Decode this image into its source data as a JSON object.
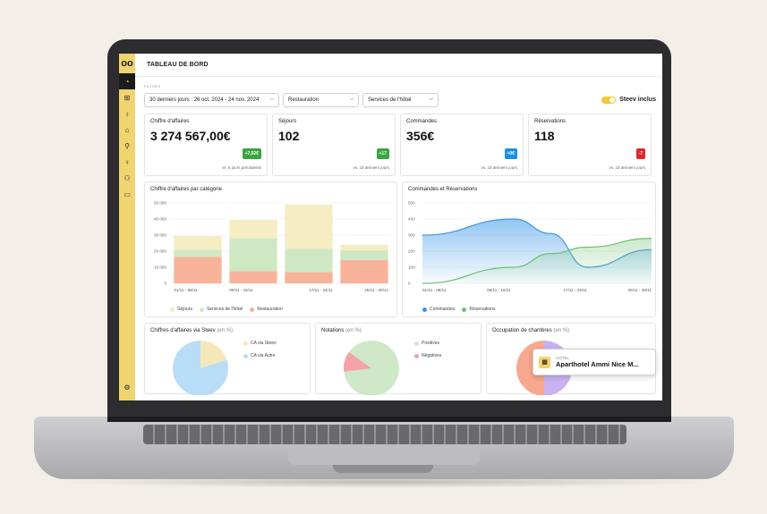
{
  "app": {
    "title": "TABLEAU DE BORD",
    "logo": "oo",
    "accent": "#f0d470"
  },
  "sidebar": {
    "items": [
      {
        "icon": "dashboard-icon",
        "glyph": "◔",
        "active": true
      },
      {
        "icon": "bag-icon",
        "glyph": "⊞",
        "active": false
      },
      {
        "icon": "cup-icon",
        "glyph": "♁",
        "active": false
      },
      {
        "icon": "cloche-icon",
        "glyph": "⌂",
        "active": false
      },
      {
        "icon": "bottle-icon",
        "glyph": "⚲",
        "active": false
      },
      {
        "icon": "lightbulb-icon",
        "glyph": "♀",
        "active": false
      },
      {
        "icon": "users-icon",
        "glyph": "⚇",
        "active": false
      },
      {
        "icon": "chat-icon",
        "glyph": "▭",
        "active": false
      }
    ],
    "settings_glyph": "⚙"
  },
  "filters": {
    "label": "FILTRES",
    "period": "30 derniers jours : 26 oct. 2024 - 24 nov. 2024",
    "category": "Restauration",
    "services": "Services de l'hôtel",
    "toggle_label": "Steev inclus",
    "toggle_on": true
  },
  "kpis": [
    {
      "label": "Chiffre d'affaires",
      "value": "3 274 567,00€",
      "badge": "+7,02€",
      "badge_color": "#3aa640",
      "compare": "vs. 5 jours précédents"
    },
    {
      "label": "Séjours",
      "value": "102",
      "badge": "+17",
      "badge_color": "#3aa640",
      "compare": "vs. 15 derniers jours"
    },
    {
      "label": "Commandes",
      "value": "356€",
      "badge": "+0€",
      "badge_color": "#1c8fe6",
      "compare": "vs. 15 derniers jours"
    },
    {
      "label": "Réservations",
      "value": "118",
      "badge": "-7",
      "badge_color": "#e0262a",
      "compare": "vs. 15 derniers jours"
    }
  ],
  "chart_data": [
    {
      "type": "bar",
      "title": "Chiffre d'affaires par catégorie",
      "categories": [
        "01/11 - 08/11",
        "09/11 - 16/11",
        "17/11 - 24/11",
        "25/11 - 30/11"
      ],
      "stacked": true,
      "series": [
        {
          "name": "Restauration",
          "values": [
            16500,
            7500,
            7000,
            14500
          ],
          "color": "#f7b49a"
        },
        {
          "name": "Services de l'hôtel",
          "values": [
            4500,
            20500,
            14500,
            6000
          ],
          "color": "#cfe8c4"
        },
        {
          "name": "Séjours",
          "values": [
            8500,
            11500,
            27500,
            3500
          ],
          "color": "#f6edc3"
        }
      ],
      "yticks": [
        "50 000",
        "40 000",
        "30 000",
        "20 000",
        "10 000",
        "0"
      ],
      "ylim": [
        0,
        50000
      ],
      "legend": "bottom"
    },
    {
      "type": "area",
      "title": "Commandes et Réservations",
      "categories": [
        "01/11 - 08/11",
        "09/11 - 16/11",
        "17/11 - 24/11",
        "25/11 - 30/11"
      ],
      "series": [
        {
          "name": "Commandes",
          "x": [
            0,
            0.4,
            0.56,
            0.72,
            1
          ],
          "values": [
            300,
            400,
            310,
            100,
            210
          ],
          "color": "#3b96e8"
        },
        {
          "name": "Réservations",
          "x": [
            0,
            0.4,
            0.56,
            0.72,
            1
          ],
          "values": [
            0,
            100,
            185,
            225,
            280
          ],
          "color": "#6dc070"
        }
      ],
      "yticks": [
        "500",
        "400",
        "300",
        "200",
        "100",
        "0"
      ],
      "ylim": [
        0,
        500
      ],
      "legend": "bottom"
    },
    {
      "type": "pie",
      "title": "Chiffres d'affaires via Steev",
      "unit": "(en %)",
      "slices": [
        {
          "name": "CA via Steev",
          "value": 20,
          "color": "#f5e8b8"
        },
        {
          "name": "CA via Autre",
          "value": 80,
          "color": "#b9dcf7"
        }
      ],
      "legend": "right"
    },
    {
      "type": "pie",
      "title": "Notations",
      "unit": "(en %)",
      "slices": [
        {
          "name": "Positives",
          "value": 88,
          "color": "#cfe8c8"
        },
        {
          "name": "Négatives",
          "value": 12,
          "color": "#f3a3a6"
        }
      ],
      "legend": "right"
    },
    {
      "type": "pie",
      "title": "Occupation de chambres",
      "unit": "(en %)",
      "slices": [
        {
          "name": "",
          "value": 50,
          "color": "#c9b2f0"
        },
        {
          "name": "",
          "value": 50,
          "color": "#f7a88e"
        }
      ],
      "legend": "none"
    }
  ],
  "tooltip": {
    "kind": "HÔTEL",
    "name": "Aparthotel Ammi Nice M..."
  }
}
